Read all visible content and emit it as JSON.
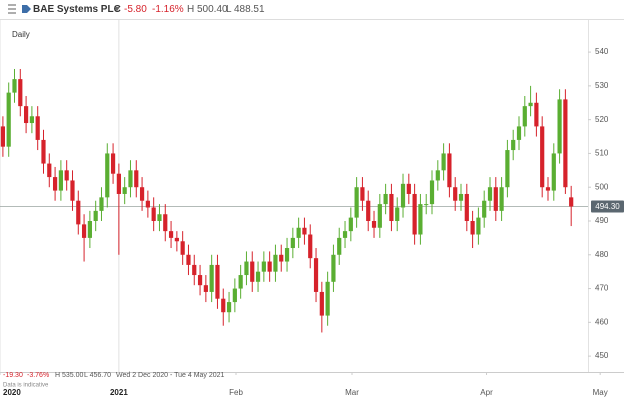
{
  "header": {
    "name": "BAE Systems PLC",
    "change": "-5.80",
    "change_pct": "-1.16%",
    "high": "H 500.40",
    "low": "L 488.51"
  },
  "footer": {
    "change": "-19.30",
    "change_pct": "-3.76%",
    "high": "H 535.00",
    "low": "L 456.70",
    "range": "Wed 2 Dec 2020 - Tue 4 May 2021",
    "note": "Data is indicative"
  },
  "chart_data": {
    "type": "candlestick",
    "interval_label": "Daily",
    "up_color": "#5aae32",
    "down_color": "#d6222b",
    "last_price": {
      "value": 494.3,
      "label": "494.30"
    },
    "ylim": [
      445.3,
      549.5
    ],
    "yticks": [
      450,
      460,
      470,
      480,
      490,
      500,
      510,
      520,
      530,
      540
    ],
    "xlim": [
      -0.5,
      100.9
    ],
    "xticks": [
      {
        "value": -0.5,
        "label": "2020",
        "bold": true
      },
      {
        "value": 20,
        "label": "2021",
        "bold": true
      },
      {
        "value": 40.2,
        "label": "Feb"
      },
      {
        "value": 60.2,
        "label": "Mar"
      },
      {
        "value": 83.4,
        "label": "Apr"
      },
      {
        "value": 103,
        "label": "May"
      }
    ],
    "open": [
      518,
      512,
      528,
      532,
      524,
      519,
      521,
      514,
      507,
      503,
      499,
      505,
      502,
      496,
      489,
      485,
      490,
      493,
      497,
      510,
      504,
      498,
      500,
      505,
      500,
      496,
      494,
      490,
      492,
      487,
      485,
      484,
      480,
      477,
      474,
      471,
      469,
      477,
      467,
      463,
      466,
      470,
      474,
      478,
      472,
      475,
      478,
      475,
      480,
      478,
      482,
      485,
      488,
      486,
      479,
      469,
      462,
      472,
      480,
      485,
      487,
      491,
      500,
      496,
      490,
      488,
      495,
      498,
      490,
      494,
      501,
      498,
      486,
      495,
      495,
      502,
      505,
      510,
      500,
      496,
      498,
      490,
      486,
      491,
      496,
      500,
      493,
      500,
      511,
      514,
      518,
      524,
      525,
      518,
      500,
      499,
      510,
      526,
      497
    ],
    "high": [
      521,
      531,
      535,
      535,
      527,
      524,
      524,
      517,
      510,
      506,
      508,
      508,
      505,
      499,
      492,
      493,
      496,
      500,
      513,
      513,
      507,
      503,
      508,
      508,
      503,
      499,
      497,
      495,
      495,
      490,
      487,
      487,
      483,
      480,
      477,
      474,
      480,
      480,
      470,
      469,
      473,
      477,
      481,
      481,
      478,
      481,
      481,
      483,
      483,
      485,
      488,
      491,
      491,
      489,
      482,
      472,
      475,
      483,
      488,
      490,
      494,
      503,
      503,
      499,
      493,
      498,
      501,
      501,
      497,
      504,
      504,
      501,
      498,
      498,
      505,
      508,
      513,
      513,
      503,
      501,
      501,
      493,
      494,
      499,
      503,
      503,
      503,
      514,
      517,
      521,
      527,
      530,
      528,
      521,
      503,
      513,
      529,
      529,
      500.4
    ],
    "low": [
      509,
      509,
      525,
      521,
      516,
      516,
      511,
      504,
      500,
      496,
      496,
      499,
      493,
      486,
      478,
      482,
      487,
      490,
      494,
      501,
      480,
      495,
      497,
      497,
      493,
      491,
      487,
      487,
      484,
      482,
      481,
      477,
      474,
      471,
      468,
      466,
      466,
      464,
      459,
      460,
      463,
      467,
      471,
      469,
      469,
      472,
      472,
      472,
      475,
      475,
      479,
      482,
      483,
      476,
      466,
      457,
      459,
      469,
      477,
      482,
      484,
      488,
      493,
      487,
      485,
      485,
      492,
      487,
      487,
      491,
      495,
      483,
      483,
      492,
      492,
      499,
      502,
      497,
      493,
      493,
      487,
      482,
      483,
      488,
      493,
      490,
      490,
      497,
      508,
      511,
      515,
      521,
      515,
      497,
      496,
      496,
      507,
      498,
      488.5
    ],
    "close": [
      512,
      528,
      532,
      524,
      519,
      521,
      514,
      507,
      503,
      499,
      505,
      502,
      496,
      489,
      485,
      490,
      493,
      497,
      510,
      504,
      498,
      500,
      505,
      500,
      496,
      494,
      490,
      492,
      487,
      485,
      484,
      480,
      477,
      474,
      471,
      469,
      477,
      467,
      463,
      466,
      470,
      474,
      478,
      472,
      475,
      478,
      475,
      480,
      478,
      482,
      485,
      488,
      486,
      479,
      469,
      462,
      472,
      480,
      485,
      487,
      491,
      500,
      496,
      490,
      488,
      495,
      498,
      490,
      494,
      501,
      498,
      486,
      495,
      495,
      502,
      505,
      510,
      500,
      496,
      498,
      490,
      486,
      491,
      496,
      500,
      493,
      500,
      511,
      514,
      518,
      524,
      525,
      518,
      500,
      499,
      510,
      526,
      500,
      494.3
    ]
  }
}
